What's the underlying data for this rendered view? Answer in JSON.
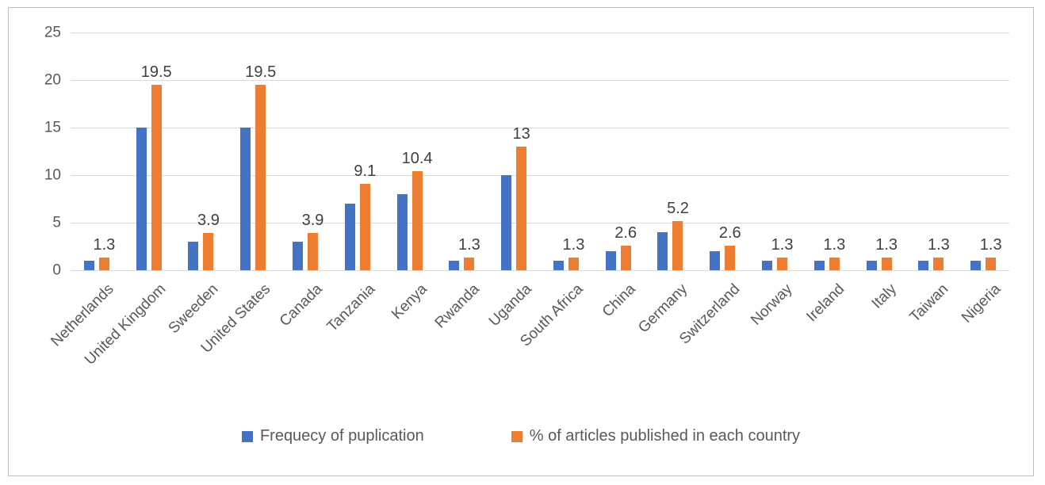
{
  "chart_data": {
    "type": "bar",
    "title": "",
    "xlabel": "",
    "ylabel": "",
    "categories": [
      "Netherlands",
      "United Kingdom",
      "Sweeden",
      "United States",
      "Canada",
      "Tanzania",
      "Kenya",
      "Rwanda",
      "Uganda",
      "South Africa",
      "China",
      "Germany",
      "Switzerland",
      "Norway",
      "Ireland",
      "Italy",
      "Taiwan",
      "Nigeria"
    ],
    "series": [
      {
        "name": "Frequecy of puplication",
        "color": "#4472C4",
        "values": [
          1,
          15,
          3,
          15,
          3,
          7,
          8,
          1,
          10,
          1,
          2,
          4,
          2,
          1,
          1,
          1,
          1,
          1
        ],
        "show_data_labels": false
      },
      {
        "name": "% of articles published in each country",
        "color": "#ED7D31",
        "values": [
          1.3,
          19.5,
          3.9,
          19.5,
          3.9,
          9.1,
          10.4,
          1.3,
          13,
          1.3,
          2.6,
          5.2,
          2.6,
          1.3,
          1.3,
          1.3,
          1.3,
          1.3
        ],
        "show_data_labels": true,
        "data_labels": [
          "1.3",
          "19.5",
          "3.9",
          "19.5",
          "3.9",
          "9.1",
          "10.4",
          "1.3",
          "13",
          "1.3",
          "2.6",
          "5.2",
          "2.6",
          "1.3",
          "1.3",
          "1.3",
          "1.3",
          "1.3"
        ]
      }
    ],
    "ylim": [
      0,
      25
    ],
    "yticks": [
      "0",
      "5",
      "10",
      "15",
      "20",
      "25"
    ],
    "grid": "horizontal",
    "legend_position": "bottom",
    "colors": {
      "grid": "#D9D9D9",
      "axis_text": "#595959",
      "data_label_text": "#404040",
      "chart_border": "#BFBFBF",
      "background": "#FFFFFF"
    }
  }
}
